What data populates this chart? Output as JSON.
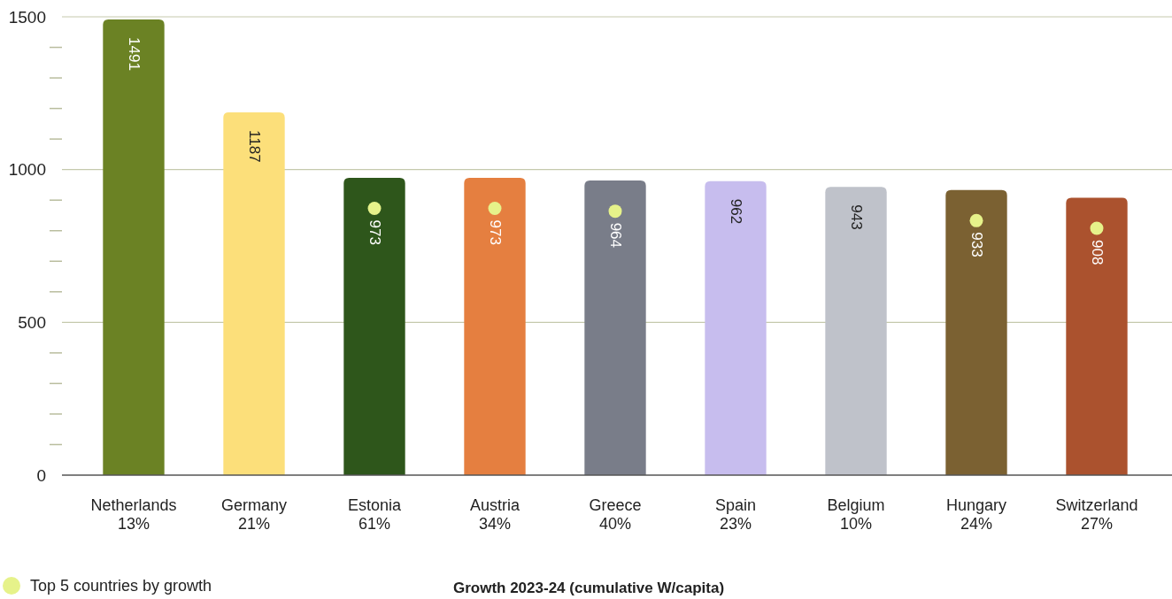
{
  "chart_data": {
    "type": "bar",
    "xlabel": "Growth 2023-24 (cumulative W/capita)",
    "categories": [
      "Netherlands\n13%",
      "Germany\n21%",
      "Estonia\n61%",
      "Austria\n34%",
      "Greece\n40%",
      "Spain\n23%",
      "Belgium\n10%",
      "Hungary\n24%",
      "Switzerland\n27%"
    ],
    "series": [
      {
        "values": [
          1491,
          1187,
          973,
          973,
          964,
          962,
          943,
          933,
          908
        ],
        "colors": [
          "#6b8224",
          "#fcdf7a",
          "#2e561b",
          "#e57f40",
          "#797d89",
          "#c7bdee",
          "#bfc2ca",
          "#7b6132",
          "#ab522e"
        ],
        "data_labels": true
      },
      {
        "type": "scatter",
        "name": "Top 5 countries by growth",
        "color": "#e6f28a",
        "x": [
          "Estonia\n61%",
          "Austria\n34%",
          "Greece\n40%",
          "Hungary\n24%",
          "Switzerland\n27%"
        ],
        "values": [
          873,
          873,
          864,
          833,
          808
        ]
      }
    ],
    "ylim": [
      0,
      1500
    ],
    "yticks": [
      0,
      {
        "value": 100,
        "label": null
      },
      {
        "value": 200,
        "label": null
      },
      {
        "value": 300,
        "label": null
      },
      {
        "value": 400,
        "label": null
      },
      500,
      {
        "value": 600,
        "label": null
      },
      {
        "value": 700,
        "label": null
      },
      {
        "value": 800,
        "label": null
      },
      {
        "value": 900,
        "label": null
      },
      1000,
      {
        "value": 1100,
        "label": null
      },
      {
        "value": 1200,
        "label": null
      },
      {
        "value": 1300,
        "label": null
      },
      {
        "value": 1400,
        "label": null
      },
      1500
    ],
    "grid": "y",
    "legend": "bottom left",
    "marker": "circle"
  }
}
